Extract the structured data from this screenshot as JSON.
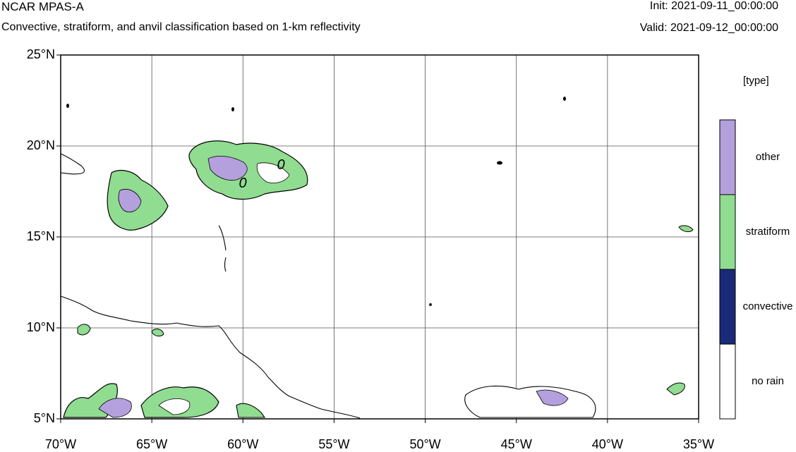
{
  "header": {
    "title": "NCAR MPAS-A",
    "subtitle": "Convective, stratiform, and anvil classification based on 1-km reflectivity",
    "init": "Init: 2021-09-11_00:00:00",
    "valid": "Valid: 2021-09-12_00:00:00"
  },
  "map": {
    "lat_labels": [
      "25°N",
      "20°N",
      "15°N",
      "10°N",
      "5°N"
    ],
    "lon_labels": [
      "70°W",
      "65°W",
      "60°W",
      "55°W",
      "50°W",
      "45°W",
      "40°W",
      "35°W"
    ],
    "lat_values": [
      25,
      20,
      15,
      10,
      5
    ],
    "lon_values": [
      -70,
      -65,
      -60,
      -55,
      -50,
      -45,
      -40,
      -35
    ],
    "extent": {
      "lon_min": -70,
      "lon_max": -35,
      "lat_min": 5,
      "lat_max": 25
    },
    "contour_labels": [
      "0",
      "0"
    ],
    "colors": {
      "convective": "#1a2a78",
      "stratiform": "#90dc90",
      "other": "#b4a0dc",
      "no_rain": "#ffffff",
      "grid": "#555555"
    }
  },
  "legend": {
    "title": "[type]",
    "items": [
      {
        "label": "other",
        "color": "#b4a0dc"
      },
      {
        "label": "stratiform",
        "color": "#90dc90"
      },
      {
        "label": "convective",
        "color": "#1a2a78"
      },
      {
        "label": "no rain",
        "color": "#ffffff"
      }
    ]
  }
}
